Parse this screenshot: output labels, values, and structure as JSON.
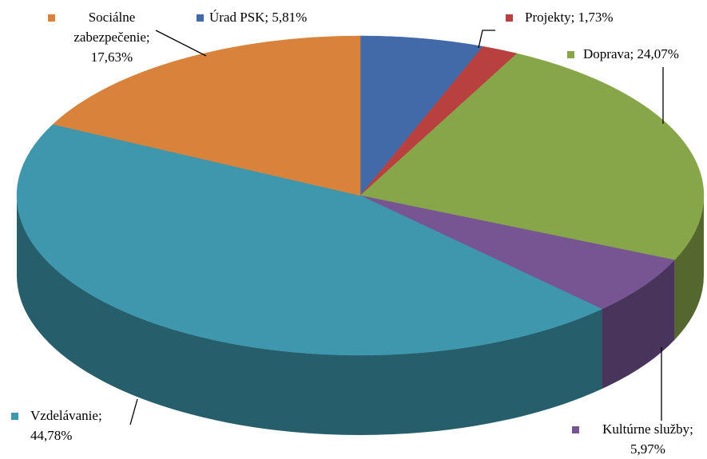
{
  "chart_data": {
    "type": "pie3d",
    "categories": [
      "Úrad PSK",
      "Projekty",
      "Doprava",
      "Kultúrne služby",
      "Vzdelávanie",
      "Sociálne zabezpečenie"
    ],
    "values": [
      5.81,
      1.73,
      24.07,
      5.97,
      44.78,
      17.63
    ],
    "value_labels": [
      "5,81%",
      "1,73%",
      "24,07%",
      "5,97%",
      "44,78%",
      "17,63%"
    ],
    "label_separator": ";",
    "colors": [
      "#426aa8",
      "#b8413f",
      "#87a64a",
      "#765592",
      "#3f97ad",
      "#d9823b"
    ]
  }
}
